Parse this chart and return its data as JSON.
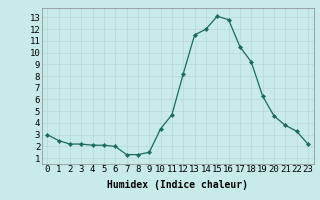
{
  "x": [
    0,
    1,
    2,
    3,
    4,
    5,
    6,
    7,
    8,
    9,
    10,
    11,
    12,
    13,
    14,
    15,
    16,
    17,
    18,
    19,
    20,
    21,
    22,
    23
  ],
  "y": [
    3.0,
    2.5,
    2.2,
    2.2,
    2.1,
    2.1,
    2.0,
    1.3,
    1.3,
    1.5,
    3.5,
    4.7,
    8.2,
    11.5,
    12.0,
    13.1,
    12.8,
    10.5,
    9.2,
    6.3,
    4.6,
    3.8,
    3.3,
    2.2
  ],
  "xlim": [
    -0.5,
    23.5
  ],
  "ylim": [
    0.5,
    13.8
  ],
  "yticks": [
    1,
    2,
    3,
    4,
    5,
    6,
    7,
    8,
    9,
    10,
    11,
    12,
    13
  ],
  "xticks": [
    0,
    1,
    2,
    3,
    4,
    5,
    6,
    7,
    8,
    9,
    10,
    11,
    12,
    13,
    14,
    15,
    16,
    17,
    18,
    19,
    20,
    21,
    22,
    23
  ],
  "xlabel": "Humidex (Indice chaleur)",
  "line_color": "#1a6b5a",
  "marker_color": "#1a6b5a",
  "bg_color": "#c8eae8",
  "grid_color": "#b8d8d5",
  "xlabel_fontsize": 7,
  "tick_fontsize": 6.5
}
